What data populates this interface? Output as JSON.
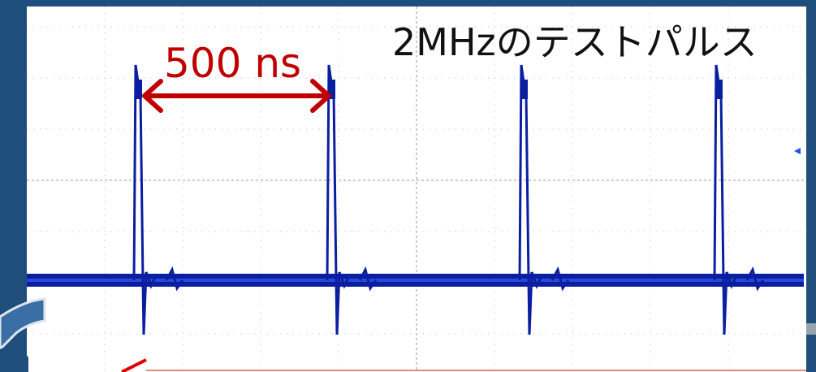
{
  "annotations": {
    "period": "500 ns",
    "caption": "2MHzのテストパルス"
  }
}
